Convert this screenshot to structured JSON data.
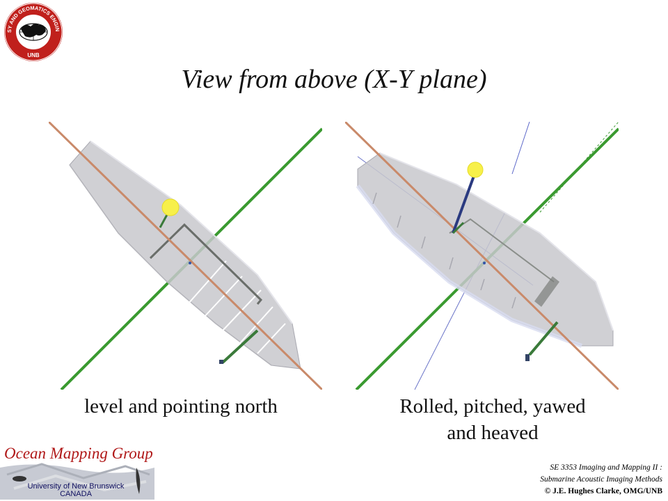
{
  "slide": {
    "title": "View from above (X-Y plane)",
    "captions": {
      "left": "level and pointing north",
      "right_line1": "Rolled, pitched, yawed",
      "right_line2": "and heaved"
    }
  },
  "logos": {
    "seal": {
      "ring_text": "GEODESY AND GEOMATICS ENGINEERING",
      "bottom_text": "UNB"
    },
    "omg": {
      "name": "Ocean Mapping Group",
      "university": "University of New Brunswick",
      "country": "CANADA"
    }
  },
  "credits": {
    "course_line1": "SE 3353 Imaging and Mapping II :",
    "course_line2": "Submarine Acoustic Imaging Methods",
    "copyright": "© J.E. Hughes Clarke, OMG/UNB"
  },
  "colors": {
    "axis_orange": "#c98a6a",
    "axis_green": "#3a9a30",
    "hull_grey": "#c8c8cc",
    "sensor_yellow": "#f7f04a",
    "omg_red": "#b01818"
  }
}
